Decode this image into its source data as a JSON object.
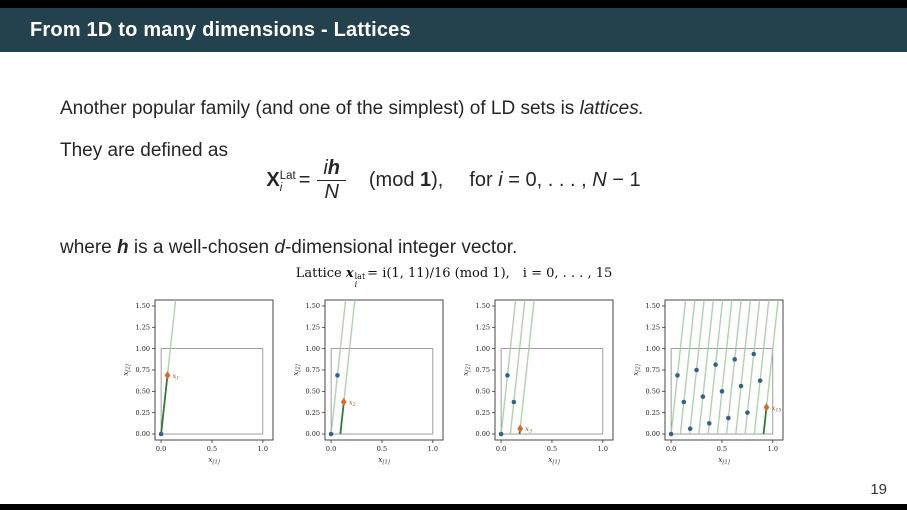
{
  "slide": {
    "frametitle": "From 1D to many dimensions - Lattices",
    "page_number": "19",
    "body": {
      "line1_main": "Another popular family (and one of the simplest) of LD sets is ",
      "line1_emph": "lattices.",
      "line2": "They are defined as",
      "line3_parts": [
        "where ",
        "h",
        " is a well-chosen ",
        "d",
        "-dimensional integer vector."
      ]
    },
    "formula": {
      "lhs": "X",
      "sup": "Lat",
      "sub": "i",
      "eq": "=",
      "num_i": "i",
      "num_h": "h",
      "den": "N",
      "mod_open": "(mod ",
      "mod_one": "1",
      "mod_close": "),",
      "for_parts": [
        "for ",
        "i",
        " = 0, . . . , ",
        "N",
        " − 1"
      ]
    }
  },
  "figure": {
    "title": {
      "prefix": "Lattice ",
      "var": "x",
      "var_sup": "lat",
      "var_sub": "i",
      "mid": "= i(1, 11)/16 (mod 1),",
      "tail": " i = 0, . . . , 15"
    }
  },
  "chart_data": {
    "type": "scatter",
    "title": "Lattice x_i^lat = i(1,11)/16 (mod 1), i = 0,...,15",
    "generator_vector": [
      1,
      11
    ],
    "n": 16,
    "points": [
      [
        0.0,
        0.0
      ],
      [
        0.0625,
        0.6875
      ],
      [
        0.125,
        0.375
      ],
      [
        0.1875,
        0.0625
      ],
      [
        0.25,
        0.75
      ],
      [
        0.3125,
        0.4375
      ],
      [
        0.375,
        0.125
      ],
      [
        0.4375,
        0.8125
      ],
      [
        0.5,
        0.5
      ],
      [
        0.5625,
        0.1875
      ],
      [
        0.625,
        0.875
      ],
      [
        0.6875,
        0.5625
      ],
      [
        0.75,
        0.25
      ],
      [
        0.8125,
        0.9375
      ],
      [
        0.875,
        0.625
      ],
      [
        0.9375,
        0.3125
      ]
    ],
    "axes": {
      "xlabel_base": "x",
      "xlabel_sub": "[1]",
      "ylabel_base": "x",
      "ylabel_sub": "[2]",
      "xticks": [
        "0.0",
        "0.5",
        "1.0"
      ],
      "xtick_vals": [
        0,
        0.5,
        1
      ],
      "yticks": [
        "0.00",
        "0.25",
        "0.50",
        "0.75",
        "1.00",
        "1.25",
        "1.50"
      ],
      "ytick_vals": [
        0,
        0.25,
        0.5,
        0.75,
        1.0,
        1.25,
        1.5
      ],
      "xlim": [
        -0.06,
        1.1
      ],
      "ylim": [
        -0.07,
        1.57
      ],
      "unit_square": [
        0,
        1
      ]
    },
    "colors": {
      "ray_light": "#9ccf98",
      "ray_dark": "#2e7d32",
      "dot_blue": "#33638a",
      "diamond_orange": "#e0662c",
      "label_orange": "#9c5410",
      "spine": "#333333",
      "square": "#777777"
    },
    "subplots": [
      {
        "step": 1,
        "label_base": "x",
        "label_sub": "1",
        "prev_count": 1
      },
      {
        "step": 2,
        "label_base": "x",
        "label_sub": "2",
        "prev_count": 2
      },
      {
        "step": 3,
        "label_base": "x",
        "label_sub": "3",
        "prev_count": 3
      },
      {
        "step": 15,
        "label_base": "x",
        "label_sub": "15",
        "prev_count": 15
      }
    ]
  }
}
